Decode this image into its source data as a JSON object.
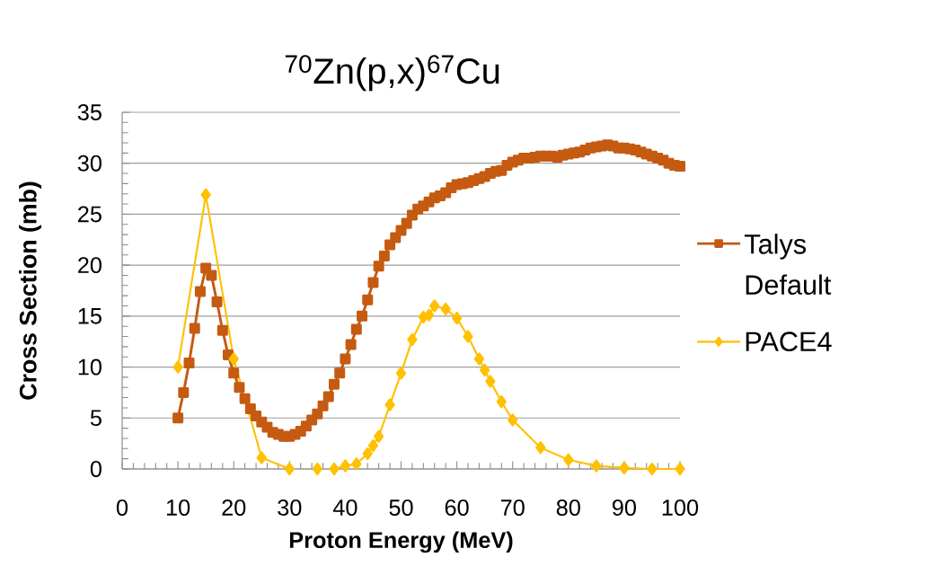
{
  "chart_data": {
    "type": "line",
    "title": "$^{70}$Zn(p,x)$^{67}$Cu",
    "xlabel": "Proton Energy (MeV)",
    "ylabel": "Cross Section (mb)",
    "xlim": [
      0,
      100
    ],
    "ylim": [
      0,
      35
    ],
    "xticks": [
      0,
      {
        "value": 2,
        "label": null
      },
      {
        "value": 4,
        "label": null
      },
      {
        "value": 6,
        "label": null
      },
      {
        "value": 8,
        "label": null
      },
      10,
      {
        "value": 12,
        "label": null
      },
      {
        "value": 14,
        "label": null
      },
      {
        "value": 16,
        "label": null
      },
      {
        "value": 18,
        "label": null
      },
      20,
      {
        "value": 22,
        "label": null
      },
      {
        "value": 24,
        "label": null
      },
      {
        "value": 26,
        "label": null
      },
      {
        "value": 28,
        "label": null
      },
      30,
      {
        "value": 32,
        "label": null
      },
      {
        "value": 34,
        "label": null
      },
      {
        "value": 36,
        "label": null
      },
      {
        "value": 38,
        "label": null
      },
      40,
      {
        "value": 42,
        "label": null
      },
      {
        "value": 44,
        "label": null
      },
      {
        "value": 46,
        "label": null
      },
      {
        "value": 48,
        "label": null
      },
      50,
      {
        "value": 52,
        "label": null
      },
      {
        "value": 54,
        "label": null
      },
      {
        "value": 56,
        "label": null
      },
      {
        "value": 58,
        "label": null
      },
      60,
      {
        "value": 62,
        "label": null
      },
      {
        "value": 64,
        "label": null
      },
      {
        "value": 66,
        "label": null
      },
      {
        "value": 68,
        "label": null
      },
      70,
      {
        "value": 72,
        "label": null
      },
      {
        "value": 74,
        "label": null
      },
      {
        "value": 76,
        "label": null
      },
      {
        "value": 78,
        "label": null
      },
      80,
      {
        "value": 82,
        "label": null
      },
      {
        "value": 84,
        "label": null
      },
      {
        "value": 86,
        "label": null
      },
      {
        "value": 88,
        "label": null
      },
      90,
      {
        "value": 92,
        "label": null
      },
      {
        "value": 94,
        "label": null
      },
      {
        "value": 96,
        "label": null
      },
      {
        "value": 98,
        "label": null
      },
      100
    ],
    "yticks": [
      0,
      {
        "value": 1,
        "label": null
      },
      {
        "value": 2,
        "label": null
      },
      {
        "value": 3,
        "label": null
      },
      {
        "value": 4,
        "label": null
      },
      5,
      {
        "value": 6,
        "label": null
      },
      {
        "value": 7,
        "label": null
      },
      {
        "value": 8,
        "label": null
      },
      {
        "value": 9,
        "label": null
      },
      10,
      {
        "value": 11,
        "label": null
      },
      {
        "value": 12,
        "label": null
      },
      {
        "value": 13,
        "label": null
      },
      {
        "value": 14,
        "label": null
      },
      15,
      {
        "value": 16,
        "label": null
      },
      {
        "value": 17,
        "label": null
      },
      {
        "value": 18,
        "label": null
      },
      {
        "value": 19,
        "label": null
      },
      20,
      {
        "value": 21,
        "label": null
      },
      {
        "value": 22,
        "label": null
      },
      {
        "value": 23,
        "label": null
      },
      {
        "value": 24,
        "label": null
      },
      25,
      {
        "value": 26,
        "label": null
      },
      {
        "value": 27,
        "label": null
      },
      {
        "value": 28,
        "label": null
      },
      {
        "value": 29,
        "label": null
      },
      30,
      {
        "value": 31,
        "label": null
      },
      {
        "value": 32,
        "label": null
      },
      {
        "value": 33,
        "label": null
      },
      {
        "value": 34,
        "label": null
      },
      35
    ],
    "grid": "y",
    "legend": "right",
    "series": [
      {
        "name": "Talys Default",
        "color": "#C55A11",
        "marker": "square",
        "x": [
          10,
          11,
          12,
          13,
          14,
          15,
          16,
          17,
          18,
          19,
          20,
          21,
          22,
          23,
          24,
          25,
          26,
          27,
          28,
          29,
          30,
          31,
          32,
          33,
          34,
          35,
          36,
          37,
          38,
          39,
          40,
          41,
          42,
          43,
          44,
          45,
          46,
          47,
          48,
          49,
          50,
          51,
          52,
          53,
          54,
          55,
          56,
          57,
          58,
          59,
          60,
          61,
          62,
          63,
          64,
          65,
          66,
          67,
          68,
          69,
          70,
          71,
          72,
          73,
          74,
          75,
          76,
          77,
          78,
          79,
          80,
          81,
          82,
          83,
          84,
          85,
          86,
          87,
          88,
          89,
          90,
          91,
          92,
          93,
          94,
          95,
          96,
          97,
          98,
          99,
          100
        ],
        "values": [
          5.0,
          7.5,
          10.4,
          13.8,
          17.4,
          19.7,
          19.0,
          16.4,
          13.6,
          11.2,
          9.4,
          8.0,
          6.9,
          5.9,
          5.2,
          4.6,
          4.1,
          3.6,
          3.4,
          3.2,
          3.2,
          3.4,
          3.7,
          4.2,
          4.8,
          5.4,
          6.2,
          7.1,
          8.3,
          9.4,
          10.8,
          12.2,
          13.7,
          15.0,
          16.6,
          18.3,
          19.9,
          20.9,
          22.0,
          22.7,
          23.4,
          24.1,
          24.9,
          25.5,
          25.8,
          26.2,
          26.6,
          26.8,
          27.1,
          27.6,
          27.9,
          28.0,
          28.1,
          28.3,
          28.5,
          28.7,
          29.0,
          29.2,
          29.3,
          29.8,
          30.1,
          30.3,
          30.5,
          30.5,
          30.6,
          30.7,
          30.7,
          30.7,
          30.6,
          30.8,
          30.9,
          31.0,
          31.1,
          31.3,
          31.5,
          31.6,
          31.7,
          31.8,
          31.7,
          31.5,
          31.5,
          31.4,
          31.3,
          31.1,
          30.9,
          30.7,
          30.5,
          30.3,
          30.0,
          29.8,
          29.7
        ]
      },
      {
        "name": "PACE4",
        "color": "#FFC000",
        "marker": "diamond",
        "x": [
          10,
          15,
          20,
          25,
          30,
          32,
          35,
          37,
          38,
          40,
          42,
          44,
          45,
          46,
          48,
          50,
          52,
          54,
          55,
          56,
          58,
          60,
          62,
          64,
          65,
          66,
          68,
          70,
          75,
          80,
          85,
          90,
          95,
          100
        ],
        "values": [
          10.0,
          26.9,
          10.8,
          1.1,
          0.0,
          null,
          0.0,
          null,
          0.0,
          0.3,
          0.5,
          1.5,
          2.3,
          3.2,
          6.3,
          9.4,
          12.7,
          14.9,
          15.1,
          16.0,
          15.7,
          14.8,
          13.0,
          10.8,
          9.7,
          8.6,
          6.6,
          4.8,
          2.1,
          0.9,
          0.3,
          0.1,
          0.0,
          0.0
        ]
      }
    ]
  }
}
